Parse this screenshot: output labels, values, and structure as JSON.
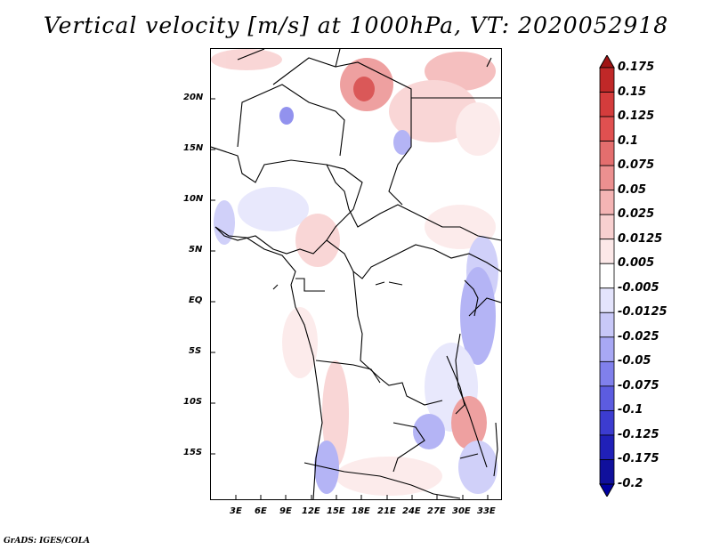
{
  "title": "Vertical velocity [m/s] at 1000hPa, VT: 2020052918",
  "credit": "GrADS: IGES/COLA",
  "map": {
    "lat_range": [
      -20,
      24.5
    ],
    "lon_range": [
      0,
      34.6
    ],
    "lat_ticks": [
      {
        "label": "20N"
      },
      {
        "label": "15N"
      },
      {
        "label": "10N"
      },
      {
        "label": "5N"
      },
      {
        "label": "EQ"
      },
      {
        "label": "5S"
      },
      {
        "label": "10S"
      },
      {
        "label": "15S"
      }
    ],
    "lon_ticks": [
      {
        "label": "3E"
      },
      {
        "label": "6E"
      },
      {
        "label": "9E"
      },
      {
        "label": "12E"
      },
      {
        "label": "15E"
      },
      {
        "label": "18E"
      },
      {
        "label": "21E"
      },
      {
        "label": "24E"
      },
      {
        "label": "27E"
      },
      {
        "label": "30E"
      },
      {
        "label": "33E"
      }
    ]
  },
  "colorbar": {
    "levels": [
      "0.175",
      "0.15",
      "0.125",
      "0.1",
      "0.075",
      "0.05",
      "0.025",
      "0.0125",
      "0.005",
      "-0.005",
      "-0.0125",
      "-0.025",
      "-0.05",
      "-0.075",
      "-0.1",
      "-0.125",
      "-0.175",
      "-0.2"
    ],
    "colors": [
      "#a01414",
      "#c02828",
      "#d43c3c",
      "#e05050",
      "#e46e6e",
      "#ec9090",
      "#f4b4b4",
      "#f8d0d0",
      "#fce8e8",
      "#ffffff",
      "#e4e4fc",
      "#c8c8f8",
      "#a8a8f4",
      "#8080ec",
      "#5c5ce0",
      "#3c3cd0",
      "#2020b8",
      "#10109c",
      "#0000a0"
    ]
  }
}
